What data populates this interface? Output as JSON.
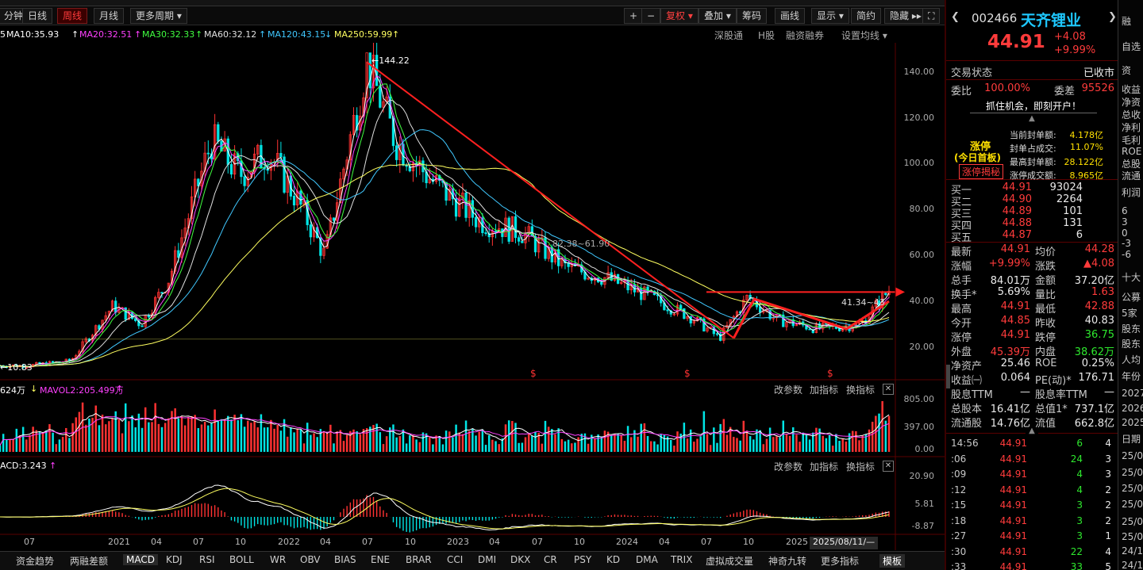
{
  "toolbar": {
    "period_tabs": [
      "分钟",
      "日线",
      "周线",
      "月线",
      "更多周期 ▾"
    ],
    "active_tab": "周线",
    "right_buttons": [
      "+",
      "−",
      "复权 ▾",
      "叠加 ▾",
      "筹码",
      "画线",
      "显示 ▾",
      "简约",
      "隐藏 ▸▸",
      "⛶"
    ]
  },
  "ma_legend": [
    {
      "label": "MA10:35.93",
      "color": "#ffffff"
    },
    {
      "label": "MA20:32.51",
      "color": "#ff40ff"
    },
    {
      "label": "MA30:32.33",
      "color": "#40ff40"
    },
    {
      "label": "MA60:32.12",
      "color": "#e0e0e0"
    },
    {
      "label": "MA120:43.15",
      "color": "#40c8ff"
    },
    {
      "label": "MA250:59.99",
      "color": "#ffff60"
    }
  ],
  "ma_prefix": "5",
  "chart_links": [
    "深股通",
    "H股",
    "融资融券",
    "设置均线 ▾"
  ],
  "price_axis": [
    "140.00",
    "120.00",
    "100.00",
    "80.00",
    "60.00",
    "40.00",
    "20.00"
  ],
  "annotations": {
    "high": "144.22",
    "low": "10.83",
    "mid_range": "82.38~61.90",
    "right_range": "41.34~43"
  },
  "volume_pane": {
    "header_a": "624万",
    "header_b": "MAVOL2:205.499万",
    "axis": [
      "805.00",
      "397.00",
      "0.00"
    ],
    "tools": [
      "改参数",
      "加指标",
      "换指标"
    ]
  },
  "macd_pane": {
    "header": "ACD:3.243",
    "axis": [
      "20.90",
      "5.81",
      "-8.87"
    ],
    "tools": [
      "改参数",
      "加指标",
      "换指标"
    ]
  },
  "time_axis": [
    "07",
    "2021",
    "04",
    "07",
    "10",
    "2022",
    "04",
    "07",
    "10",
    "2023",
    "04",
    "07",
    "10",
    "2024",
    "04",
    "07",
    "10",
    "2025"
  ],
  "time_cursor": "2025/08/11/—",
  "bottom_tabs": [
    "资金趋势",
    "两融差额",
    "MACD",
    "KDJ",
    "RSI",
    "BOLL",
    "WR",
    "OBV",
    "BIAS",
    "ENE",
    "BRAR",
    "CCI",
    "DMI",
    "DKX",
    "CR",
    "PSY",
    "KD",
    "DMA",
    "TRIX",
    "虚拟成交量",
    "神奇九转",
    "更多指标",
    "模板"
  ],
  "active_bottom_tab": "MACD",
  "chart_data": {
    "type": "candlestick",
    "ylim": [
      0,
      150
    ],
    "xlabels": [
      "07",
      "2021",
      "04",
      "07",
      "10",
      "2022",
      "04",
      "07",
      "10",
      "2023",
      "04",
      "07",
      "10",
      "2024",
      "04",
      "07",
      "10",
      "2025"
    ],
    "close_path": [
      [
        "2020-07",
        12
      ],
      [
        "2020-10",
        14
      ],
      [
        "2021-01",
        38
      ],
      [
        "2021-03",
        30
      ],
      [
        "2021-05",
        50
      ],
      [
        "2021-08",
        110
      ],
      [
        "2021-10",
        95
      ],
      [
        "2021-12",
        105
      ],
      [
        "2022-02",
        85
      ],
      [
        "2022-04",
        60
      ],
      [
        "2022-07",
        144.22
      ],
      [
        "2022-09",
        110
      ],
      [
        "2022-12",
        90
      ],
      [
        "2023-03",
        75
      ],
      [
        "2023-06",
        70
      ],
      [
        "2023-09",
        55
      ],
      [
        "2023-12",
        50
      ],
      [
        "2024-03",
        42
      ],
      [
        "2024-06",
        33
      ],
      [
        "2024-08",
        24
      ],
      [
        "2024-10",
        42
      ],
      [
        "2024-12",
        32
      ],
      [
        "2025-03",
        28
      ],
      [
        "2025-06",
        30
      ],
      [
        "2025-08",
        44.91
      ]
    ],
    "extremes": {
      "high": 144.22,
      "low": 10.83
    }
  },
  "stock": {
    "code": "002466",
    "name": "天齐锂业",
    "price": "44.91",
    "change": "+4.08",
    "change_pct": "+9.99%"
  },
  "status": {
    "label": "交易状态",
    "value": "已收市"
  },
  "weibi": {
    "l1": "委比",
    "v1": "100.00%",
    "l2": "委差",
    "v2": "95526"
  },
  "promo": "抓住机会，即刻开户！",
  "limit_up": {
    "title": "涨停",
    "subtitle": "(今日首板)",
    "button": "涨停揭秘",
    "lines": [
      {
        "label": "当前封单额:",
        "value": "4.178亿"
      },
      {
        "label": "封单占成交:",
        "value": "11.07%"
      },
      {
        "label": "最高封单额:",
        "value": "28.122亿"
      },
      {
        "label": "涨停成交额:",
        "value": "8.965亿"
      }
    ]
  },
  "order_book": [
    {
      "label": "买一",
      "price": "44.91",
      "vol": "93024"
    },
    {
      "label": "买二",
      "price": "44.90",
      "vol": "2264"
    },
    {
      "label": "买三",
      "price": "44.89",
      "vol": "101"
    },
    {
      "label": "买四",
      "price": "44.88",
      "vol": "131"
    },
    {
      "label": "买五",
      "price": "44.87",
      "vol": "6"
    }
  ],
  "quote": [
    {
      "l1": "最新",
      "v1": "44.91",
      "c1": "red",
      "l2": "均价",
      "v2": "44.28",
      "c2": "red"
    },
    {
      "l1": "涨幅",
      "v1": "+9.99%",
      "c1": "red",
      "l2": "涨跌",
      "v2": "▲4.08",
      "c2": "red"
    },
    {
      "l1": "总手",
      "v1": "84.01万",
      "c1": "white",
      "l2": "金额",
      "v2": "37.20亿",
      "c2": "white"
    },
    {
      "l1": "换手*",
      "v1": "5.69%",
      "c1": "white",
      "l2": "量比",
      "v2": "1.63",
      "c2": "red"
    },
    {
      "l1": "最高",
      "v1": "44.91",
      "c1": "red",
      "l2": "最低",
      "v2": "42.88",
      "c2": "red"
    },
    {
      "l1": "今开",
      "v1": "44.85",
      "c1": "red",
      "l2": "昨收",
      "v2": "40.83",
      "c2": "white"
    },
    {
      "l1": "涨停",
      "v1": "44.91",
      "c1": "red",
      "l2": "跌停",
      "v2": "36.75",
      "c2": "green"
    },
    {
      "l1": "外盘",
      "v1": "45.39万",
      "c1": "red",
      "l2": "内盘",
      "v2": "38.62万",
      "c2": "green"
    },
    {
      "l1": "净资产",
      "v1": "25.46",
      "c1": "white",
      "l2": "ROE",
      "v2": "0.25%",
      "c2": "white"
    },
    {
      "l1": "收益㈠",
      "v1": "0.064",
      "c1": "white",
      "l2": "PE(动)*",
      "v2": "176.71",
      "c2": "white"
    },
    {
      "l1": "股息TTM",
      "v1": "—",
      "c1": "white",
      "l2": "股息率TTM",
      "v2": "—",
      "c2": "white"
    },
    {
      "l1": "总股本",
      "v1": "16.41亿",
      "c1": "white",
      "l2": "总值1*",
      "v2": "737.1亿",
      "c2": "white"
    },
    {
      "l1": "流通股",
      "v1": "14.76亿",
      "c1": "white",
      "l2": "流值",
      "v2": "662.8亿",
      "c2": "white"
    }
  ],
  "ticks": [
    {
      "time": "14:56",
      "price": "44.91",
      "vol": "6",
      "n": "4",
      "vc": "green"
    },
    {
      "time": ":06",
      "price": "44.91",
      "vol": "24",
      "n": "3",
      "vc": "green"
    },
    {
      "time": ":09",
      "price": "44.91",
      "vol": "4",
      "n": "3",
      "vc": "green"
    },
    {
      "time": ":12",
      "price": "44.91",
      "vol": "4",
      "n": "2",
      "vc": "green"
    },
    {
      "time": ":15",
      "price": "44.91",
      "vol": "3",
      "n": "2",
      "vc": "green"
    },
    {
      "time": ":18",
      "price": "44.91",
      "vol": "3",
      "n": "2",
      "vc": "green"
    },
    {
      "time": ":27",
      "price": "44.91",
      "vol": "3",
      "n": "1",
      "vc": "green"
    },
    {
      "time": ":30",
      "price": "44.91",
      "vol": "22",
      "n": "4",
      "vc": "green"
    },
    {
      "time": ":33",
      "price": "44.91",
      "vol": "33",
      "n": "5",
      "vc": "green"
    }
  ],
  "far_right": [
    "融",
    "自选",
    "资",
    "收益",
    "净资",
    "总收",
    "净利",
    "毛利",
    "ROE",
    "总股",
    "流通",
    "利润",
    "6",
    "3",
    "0",
    "-3",
    "-6",
    "十大",
    "公募",
    "5家",
    "股东",
    "股东",
    "人均",
    "年份",
    "2027",
    "2026",
    "2025",
    "日期",
    "25/0",
    "25/0",
    "25/0",
    "25/0",
    "25/0",
    "25/0",
    "24/1",
    "24/1"
  ]
}
